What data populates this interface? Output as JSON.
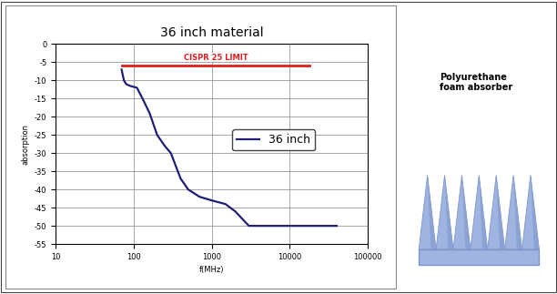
{
  "chart_data": {
    "type": "line",
    "title": "36 inch material",
    "x_label": "f(MHz)",
    "y_label": "absorption",
    "log": "x",
    "grid": true,
    "legend": "center right",
    "xlim": [
      10,
      100000
    ],
    "xticks": [
      10,
      100,
      1000,
      10000,
      100000
    ],
    "ylim": [
      -55,
      0
    ],
    "yticks": [
      0,
      -5,
      -10,
      -15,
      -20,
      -25,
      -30,
      -35,
      -40,
      -45,
      -50,
      -55
    ],
    "series": [
      {
        "name": "36 inch",
        "color": "#1f1f7a",
        "x": [
          70,
          75,
          80,
          90,
          110,
          130,
          160,
          200,
          250,
          300,
          400,
          500,
          700,
          1000,
          1500,
          2000,
          3000,
          5000,
          10000,
          40000
        ],
        "values": [
          -7,
          -10,
          -11,
          -11.5,
          -12,
          -15,
          -19,
          -25,
          -28,
          -30,
          -37,
          -40,
          -42,
          -43,
          -44,
          -46,
          -50,
          -50,
          -50,
          -50
        ]
      }
    ],
    "annotations": [
      {
        "text": "CISPR 25 LIMIT",
        "color": "#e02020",
        "x": [
          70,
          18000
        ],
        "values": [
          -6,
          -6
        ]
      }
    ]
  },
  "side_text": "Polyurethane\nfoam absorber"
}
